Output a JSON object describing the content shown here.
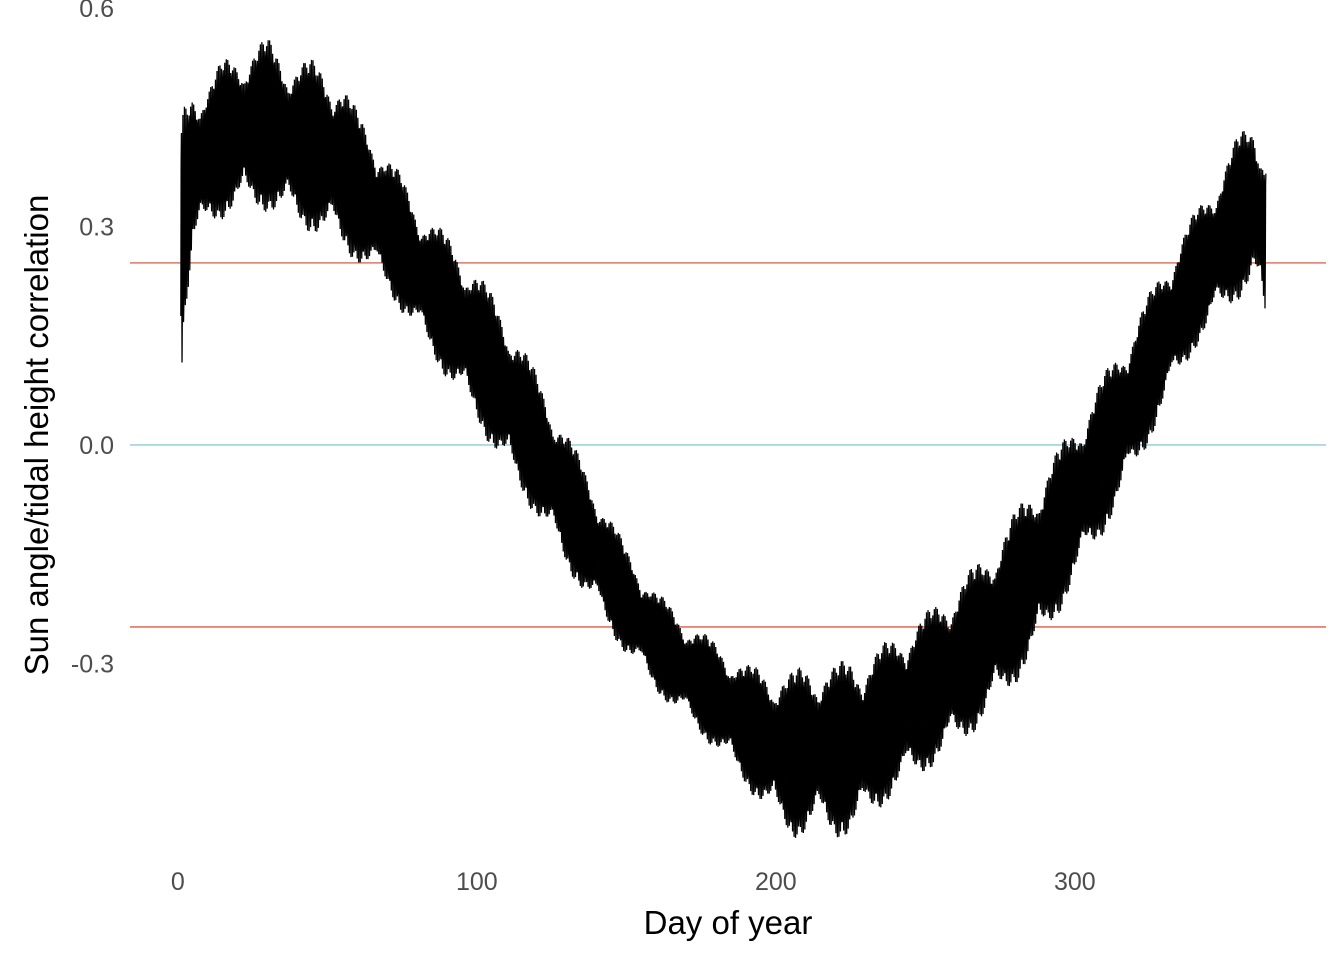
{
  "chart_data": {
    "type": "line",
    "title": "",
    "xlabel": "Day of year",
    "ylabel": "Sun angle/tidal height correlation",
    "xlim": [
      -16,
      384
    ],
    "ylim": [
      -0.57,
      0.6
    ],
    "x_ticks": [
      0,
      100,
      200,
      300
    ],
    "y_ticks": [
      0.6,
      0.3,
      0.0,
      -0.3
    ],
    "x_tick_labels": [
      "0",
      "100",
      "200",
      "300"
    ],
    "y_tick_labels": [
      "0.6",
      "0.3",
      "0.0",
      "-0.3"
    ],
    "grid": false,
    "theme": "minimal",
    "reference_lines": [
      {
        "y": 0.25,
        "color": "#E8735F"
      },
      {
        "y": 0.0,
        "color": "#9ED4D6"
      },
      {
        "y": -0.25,
        "color": "#E8735F"
      }
    ],
    "series_color": "#000000",
    "envelope": {
      "description_free": true,
      "upper_x": [
        1,
        2,
        5,
        10,
        15,
        20,
        25,
        30,
        35,
        40,
        45,
        50,
        55,
        60,
        65,
        70,
        75,
        80,
        90,
        100,
        110,
        120,
        130,
        140,
        150,
        160,
        170,
        180,
        190,
        200,
        205,
        210,
        215,
        220,
        225,
        230,
        240,
        250,
        260,
        270,
        280,
        290,
        300,
        310,
        320,
        330,
        340,
        350,
        355,
        360,
        364
      ],
      "upper_y": [
        0.44,
        0.47,
        0.5,
        0.5,
        0.53,
        0.54,
        0.55,
        0.56,
        0.54,
        0.53,
        0.53,
        0.52,
        0.5,
        0.46,
        0.43,
        0.4,
        0.37,
        0.33,
        0.29,
        0.24,
        0.18,
        0.1,
        0.02,
        -0.06,
        -0.14,
        -0.2,
        -0.24,
        -0.27,
        -0.3,
        -0.31,
        -0.31,
        -0.3,
        -0.3,
        -0.3,
        -0.29,
        -0.29,
        -0.26,
        -0.23,
        -0.19,
        -0.15,
        -0.09,
        -0.03,
        0.03,
        0.1,
        0.17,
        0.25,
        0.32,
        0.39,
        0.43,
        0.45,
        0.42
      ],
      "lower_x": [
        1,
        2,
        5,
        10,
        20,
        30,
        40,
        50,
        60,
        70,
        80,
        90,
        100,
        110,
        120,
        130,
        140,
        150,
        160,
        170,
        180,
        190,
        200,
        205,
        210,
        215,
        220,
        225,
        230,
        240,
        250,
        260,
        270,
        280,
        290,
        300,
        310,
        320,
        330,
        340,
        350,
        360,
        364
      ],
      "lower_y": [
        0.07,
        0.15,
        0.25,
        0.3,
        0.32,
        0.32,
        0.3,
        0.28,
        0.25,
        0.21,
        0.15,
        0.09,
        0.03,
        -0.04,
        -0.1,
        -0.17,
        -0.23,
        -0.29,
        -0.34,
        -0.38,
        -0.42,
        -0.47,
        -0.52,
        -0.54,
        -0.54,
        -0.53,
        -0.54,
        -0.54,
        -0.52,
        -0.48,
        -0.45,
        -0.42,
        -0.38,
        -0.33,
        -0.27,
        -0.19,
        -0.12,
        -0.04,
        0.05,
        0.13,
        0.18,
        0.22,
        0.14
      ]
    }
  }
}
